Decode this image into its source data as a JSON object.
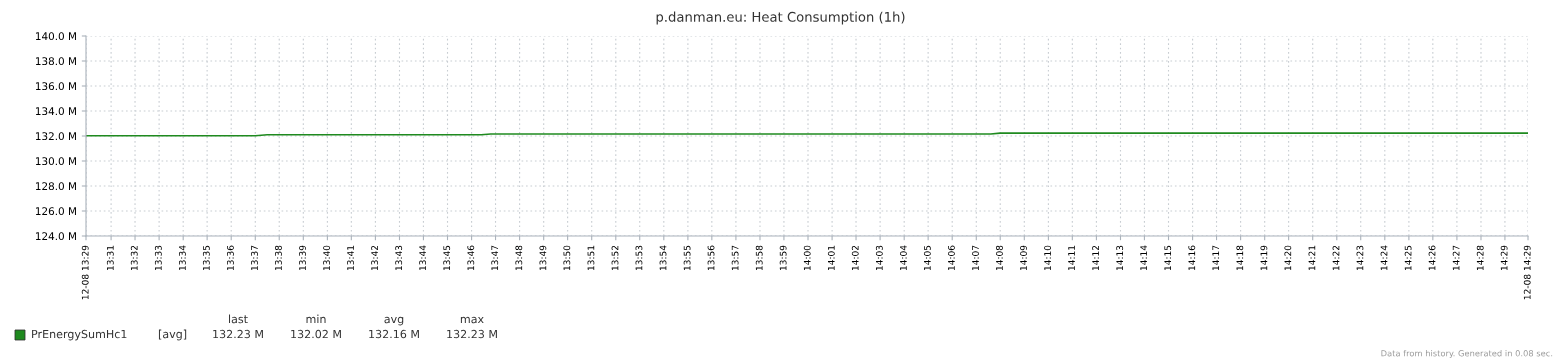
{
  "chart_data": {
    "type": "line",
    "title": "p.danman.eu: Heat Consumption (1h)",
    "x": [
      13.4993,
      13.6167,
      13.625,
      13.7733,
      13.78,
      14.1267,
      14.1333,
      14.4993
    ],
    "series": [
      {
        "name": "PrEnergySumHc1",
        "color": "#1f8a1f",
        "values": [
          132.02,
          132.02,
          132.1,
          132.1,
          132.16,
          132.16,
          132.23,
          132.23
        ]
      }
    ],
    "xlim": [
      13.4993,
      14.4993
    ],
    "xticks": [
      {
        "value": 13.4993,
        "label": "12-08 13:29"
      },
      {
        "value": 13.5167,
        "label": "13:31"
      },
      {
        "value": 13.5333,
        "label": "13:32"
      },
      {
        "value": 13.55,
        "label": "13:33"
      },
      {
        "value": 13.5667,
        "label": "13:34"
      },
      {
        "value": 13.5833,
        "label": "13:35"
      },
      {
        "value": 13.6,
        "label": "13:36"
      },
      {
        "value": 13.6167,
        "label": "13:37"
      },
      {
        "value": 13.6333,
        "label": "13:38"
      },
      {
        "value": 13.65,
        "label": "13:39"
      },
      {
        "value": 13.6667,
        "label": "13:40"
      },
      {
        "value": 13.6833,
        "label": "13:41"
      },
      {
        "value": 13.7,
        "label": "13:42"
      },
      {
        "value": 13.7167,
        "label": "13:43"
      },
      {
        "value": 13.7333,
        "label": "13:44"
      },
      {
        "value": 13.75,
        "label": "13:45"
      },
      {
        "value": 13.7667,
        "label": "13:46"
      },
      {
        "value": 13.7833,
        "label": "13:47"
      },
      {
        "value": 13.8,
        "label": "13:48"
      },
      {
        "value": 13.8167,
        "label": "13:49"
      },
      {
        "value": 13.8333,
        "label": "13:50"
      },
      {
        "value": 13.85,
        "label": "13:51"
      },
      {
        "value": 13.8667,
        "label": "13:52"
      },
      {
        "value": 13.8833,
        "label": "13:53"
      },
      {
        "value": 13.9,
        "label": "13:54"
      },
      {
        "value": 13.9167,
        "label": "13:55"
      },
      {
        "value": 13.9333,
        "label": "13:56"
      },
      {
        "value": 13.95,
        "label": "13:57"
      },
      {
        "value": 13.9667,
        "label": "13:58"
      },
      {
        "value": 13.9833,
        "label": "13:59"
      },
      {
        "value": 14.0,
        "label": "14:00"
      },
      {
        "value": 14.0167,
        "label": "14:01"
      },
      {
        "value": 14.0333,
        "label": "14:02"
      },
      {
        "value": 14.05,
        "label": "14:03"
      },
      {
        "value": 14.0667,
        "label": "14:04"
      },
      {
        "value": 14.0833,
        "label": "14:05"
      },
      {
        "value": 14.1,
        "label": "14:06"
      },
      {
        "value": 14.1167,
        "label": "14:07"
      },
      {
        "value": 14.1333,
        "label": "14:08"
      },
      {
        "value": 14.15,
        "label": "14:09"
      },
      {
        "value": 14.1667,
        "label": "14:10"
      },
      {
        "value": 14.1833,
        "label": "14:11"
      },
      {
        "value": 14.2,
        "label": "14:12"
      },
      {
        "value": 14.2167,
        "label": "14:13"
      },
      {
        "value": 14.2333,
        "label": "14:14"
      },
      {
        "value": 14.25,
        "label": "14:15"
      },
      {
        "value": 14.2667,
        "label": "14:16"
      },
      {
        "value": 14.2833,
        "label": "14:17"
      },
      {
        "value": 14.3,
        "label": "14:18"
      },
      {
        "value": 14.3167,
        "label": "14:19"
      },
      {
        "value": 14.3333,
        "label": "14:20"
      },
      {
        "value": 14.35,
        "label": "14:21"
      },
      {
        "value": 14.3667,
        "label": "14:22"
      },
      {
        "value": 14.3833,
        "label": "14:23"
      },
      {
        "value": 14.4,
        "label": "14:24"
      },
      {
        "value": 14.4167,
        "label": "14:25"
      },
      {
        "value": 14.4333,
        "label": "14:26"
      },
      {
        "value": 14.45,
        "label": "14:27"
      },
      {
        "value": 14.4667,
        "label": "14:28"
      },
      {
        "value": 14.4833,
        "label": "14:29"
      },
      {
        "value": 14.4993,
        "label": "12-08 14:29"
      }
    ],
    "ylim": [
      124,
      140
    ],
    "yticks": [
      {
        "value": 124,
        "label": "124.0 M"
      },
      {
        "value": 126,
        "label": "126.0 M"
      },
      {
        "value": 128,
        "label": "128.0 M"
      },
      {
        "value": 130,
        "label": "130.0 M"
      },
      {
        "value": 132,
        "label": "132.0 M"
      },
      {
        "value": 134,
        "label": "134.0 M"
      },
      {
        "value": 136,
        "label": "136.0 M"
      },
      {
        "value": 138,
        "label": "138.0 M"
      },
      {
        "value": 140,
        "label": "140.0 M"
      }
    ],
    "grid": true,
    "legend": "bottom",
    "marker": "none",
    "line_style": "solid",
    "annotations": [
      "[avg]",
      "last",
      "min",
      "avg",
      "max",
      "132.23 M",
      "132.02 M",
      "132.16 M",
      "132.23 M",
      "Data from history. Generated in 0.08 sec."
    ]
  }
}
